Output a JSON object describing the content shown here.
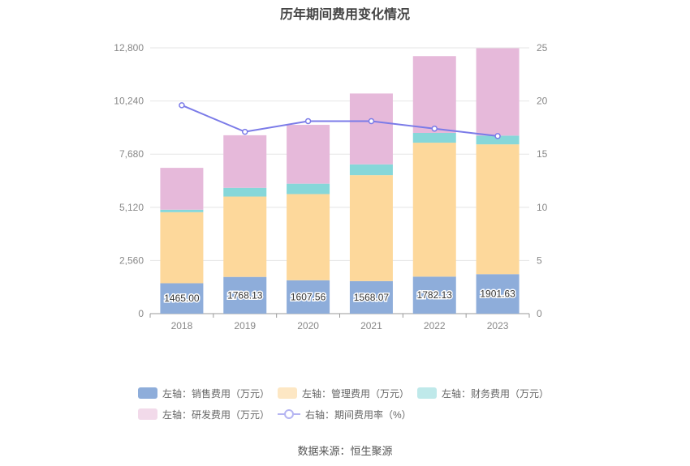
{
  "chart_data": {
    "type": "bar",
    "title": "历年期间费用变化情况",
    "categories": [
      "2018",
      "2019",
      "2020",
      "2021",
      "2022",
      "2023"
    ],
    "y_left": {
      "ticks": [
        "0",
        "2,560",
        "5,120",
        "7,680",
        "10,240",
        "12,800"
      ],
      "lim": [
        0,
        12800
      ]
    },
    "y_right": {
      "ticks": [
        "0",
        "5",
        "10",
        "15",
        "20",
        "25"
      ],
      "lim": [
        0,
        25
      ]
    },
    "series": [
      {
        "name": "左轴：销售费用（万元）",
        "kind": "bar",
        "axis": "left",
        "color": "#8eadda",
        "legend_color": "#8eadda",
        "values": [
          1465.0,
          1768.13,
          1607.56,
          1568.07,
          1782.13,
          1901.63
        ],
        "labels": [
          "1465.00",
          "1768.13",
          "1607.56",
          "1568.07",
          "1782.13",
          "1901.63"
        ]
      },
      {
        "name": "左轴：管理费用（万元）",
        "kind": "bar",
        "axis": "left",
        "color": "#fdd89b",
        "legend_color": "#fde7c4",
        "values": [
          3420,
          3870,
          4150,
          5100,
          6450,
          6250
        ]
      },
      {
        "name": "左轴：财务费用（万元）",
        "kind": "bar",
        "axis": "left",
        "color": "#86d7d9",
        "legend_color": "#bfe9ea",
        "values": [
          120,
          420,
          500,
          520,
          470,
          420
        ]
      },
      {
        "name": "左轴：研发费用（万元）",
        "kind": "bar",
        "axis": "left",
        "color": "#e6b9da",
        "legend_color": "#f2daea",
        "values": [
          2015,
          2532,
          2833,
          3412,
          3698,
          4208
        ]
      },
      {
        "name": "右轴：期间费用率（%）",
        "kind": "line",
        "axis": "right",
        "color": "#7b7be8",
        "values": [
          19.6,
          17.1,
          18.1,
          18.1,
          17.4,
          16.7
        ]
      }
    ],
    "source": "数据来源：恒生聚源"
  }
}
